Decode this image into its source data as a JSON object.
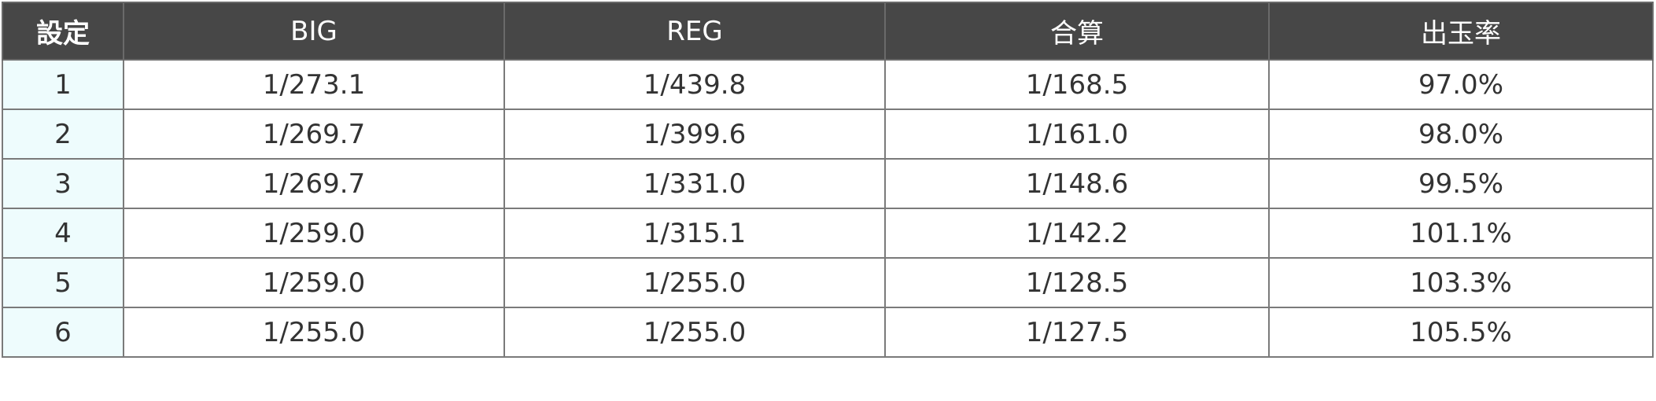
{
  "table": {
    "headers": [
      "設定",
      "BIG",
      "REG",
      "合算",
      "出玉率"
    ],
    "rows": [
      [
        "1",
        "1/273.1",
        "1/439.8",
        "1/168.5",
        "97.0%"
      ],
      [
        "2",
        "1/269.7",
        "1/399.6",
        "1/161.0",
        "98.0%"
      ],
      [
        "3",
        "1/269.7",
        "1/331.0",
        "1/148.6",
        "99.5%"
      ],
      [
        "4",
        "1/259.0",
        "1/315.1",
        "1/142.2",
        "101.1%"
      ],
      [
        "5",
        "1/259.0",
        "1/255.0",
        "1/128.5",
        "103.3%"
      ],
      [
        "6",
        "1/255.0",
        "1/255.0",
        "1/127.5",
        "105.5%"
      ]
    ]
  },
  "colors": {
    "header_bg": "#474747",
    "header_text": "#ffffff",
    "setting_cell_bg": "#eefcfd",
    "border": "#7a7a7a",
    "body_text": "#333333"
  }
}
